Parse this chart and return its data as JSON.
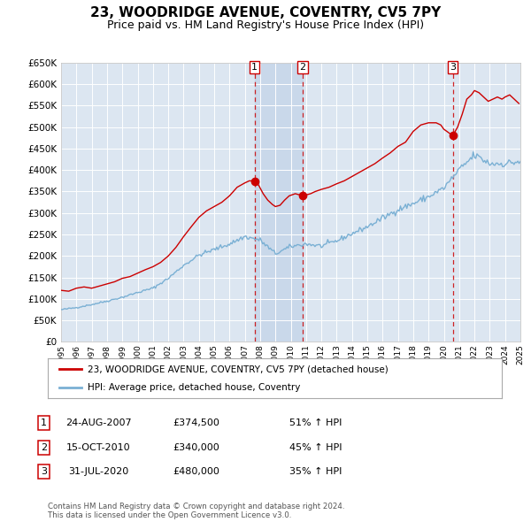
{
  "title": "23, WOODRIDGE AVENUE, COVENTRY, CV5 7PY",
  "subtitle": "Price paid vs. HM Land Registry's House Price Index (HPI)",
  "title_fontsize": 11,
  "subtitle_fontsize": 9,
  "bg_color": "#ffffff",
  "plot_bg_color": "#dce6f1",
  "grid_color": "#ffffff",
  "red_color": "#cc0000",
  "blue_color": "#7ab0d4",
  "sale_year_nums": [
    2007.646,
    2010.789,
    2020.581
  ],
  "sale_prices": [
    374500,
    340000,
    480000
  ],
  "sale_labels": [
    "1",
    "2",
    "3"
  ],
  "legend_line1": "23, WOODRIDGE AVENUE, COVENTRY, CV5 7PY (detached house)",
  "legend_line2": "HPI: Average price, detached house, Coventry",
  "table_data": [
    [
      "1",
      "24-AUG-2007",
      "£374,500",
      "51% ↑ HPI"
    ],
    [
      "2",
      "15-OCT-2010",
      "£340,000",
      "45% ↑ HPI"
    ],
    [
      "3",
      "31-JUL-2020",
      "£480,000",
      "35% ↑ HPI"
    ]
  ],
  "footer": "Contains HM Land Registry data © Crown copyright and database right 2024.\nThis data is licensed under the Open Government Licence v3.0.",
  "xmin": 1995,
  "xmax": 2025
}
